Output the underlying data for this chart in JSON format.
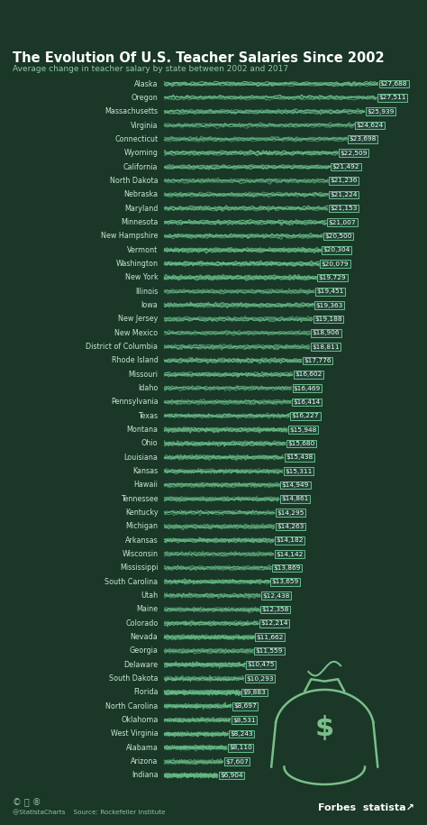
{
  "title": "The Evolution Of U.S. Teacher Salaries Since 2002",
  "subtitle": "Average change in teacher salary by state between 2002 and 2017",
  "bg_color": "#1a3728",
  "bar_color": "#6abf8a",
  "label_color": "#c8e8d0",
  "states": [
    "Alaska",
    "Oregon",
    "Massachusetts",
    "Virginia",
    "Connecticut",
    "Wyoming",
    "California",
    "North Dakota",
    "Nebraska",
    "Maryland",
    "Minnesota",
    "New Hampshire",
    "Vermont",
    "Washington",
    "New York",
    "Illinois",
    "Iowa",
    "New Jersey",
    "New Mexico",
    "District of Columbia",
    "Rhode Island",
    "Missouri",
    "Idaho",
    "Pennsylvania",
    "Texas",
    "Montana",
    "Ohio",
    "Louisiana",
    "Kansas",
    "Hawaii",
    "Tennessee",
    "Kentucky",
    "Michigan",
    "Arkansas",
    "Wisconsin",
    "Mississippi",
    "South Carolina",
    "Utah",
    "Maine",
    "Colorado",
    "Nevada",
    "Georgia",
    "Delaware",
    "South Dakota",
    "Florida",
    "North Carolina",
    "Oklahoma",
    "West Virginia",
    "Alabama",
    "Arizona",
    "Indiana"
  ],
  "values": [
    27688,
    27511,
    25939,
    24624,
    23698,
    22509,
    21492,
    21236,
    21224,
    21153,
    21007,
    20500,
    20304,
    20079,
    19729,
    19451,
    19363,
    19188,
    18906,
    18811,
    17776,
    16602,
    16469,
    16414,
    16227,
    15948,
    15680,
    15438,
    15311,
    14949,
    14861,
    14295,
    14263,
    14182,
    14142,
    13869,
    13659,
    12438,
    12358,
    12214,
    11662,
    11559,
    10475,
    10293,
    9883,
    8697,
    8531,
    8243,
    8110,
    7607,
    6904
  ]
}
